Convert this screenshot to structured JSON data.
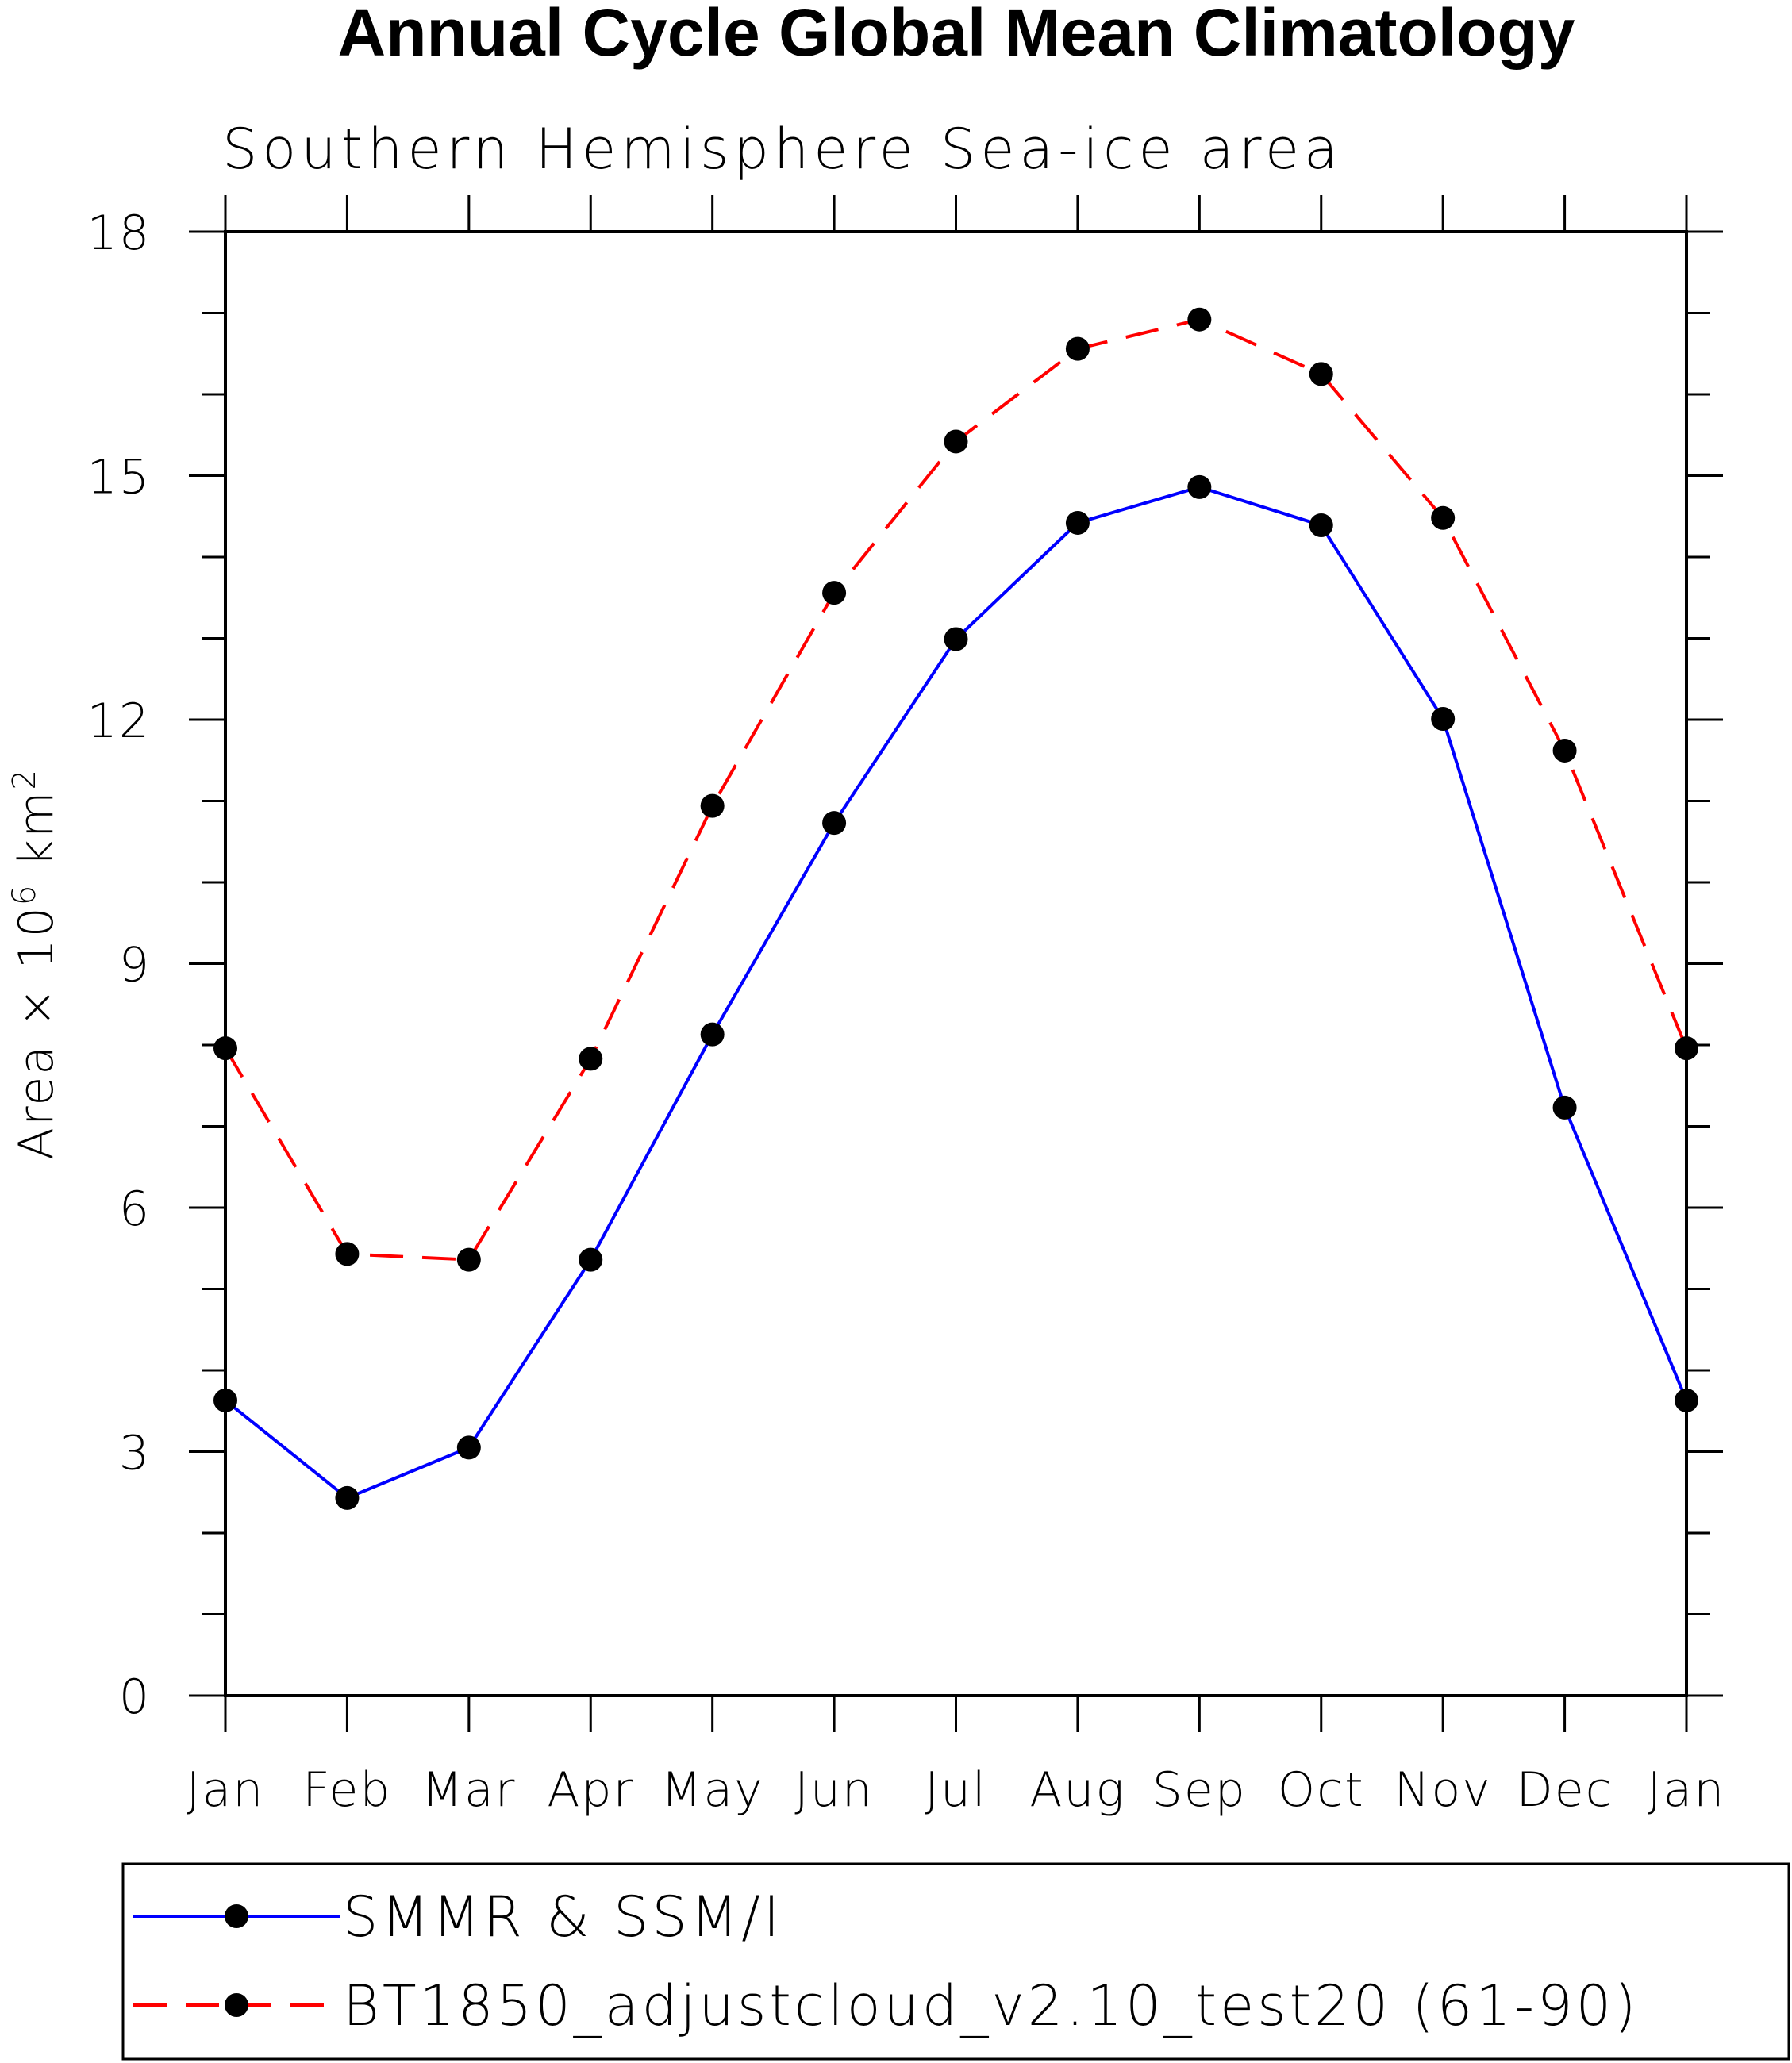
{
  "chart_data": {
    "type": "line",
    "title": "Annual Cycle Global Mean Climatology",
    "subtitle": "Southern Hemisphere Sea-ice area",
    "xlabel": "",
    "ylabel": "Area × 10",
    "ylabel_sup": "6",
    "ylabel_unit": " km",
    "ylabel_unit_sup": "2",
    "categories": [
      "Jan",
      "Feb",
      "Mar",
      "Apr",
      "May",
      "Jun",
      "Jul",
      "Aug",
      "Sep",
      "Oct",
      "Nov",
      "Dec",
      "Jan"
    ],
    "ylim": [
      0,
      18
    ],
    "yticks": [
      "0",
      "3",
      "6",
      "9",
      "12",
      "15",
      "18"
    ],
    "grid": false,
    "legend_position": "bottom",
    "series": [
      {
        "name": "SMMR & SSM/I",
        "color": "#0000ff",
        "dash": "solid",
        "values": [
          3.63,
          2.43,
          3.05,
          5.36,
          8.13,
          10.73,
          12.99,
          14.42,
          14.86,
          14.39,
          12.01,
          7.23,
          3.63
        ]
      },
      {
        "name": "BT1850_adjustcloud_v2.10_test20 (61-90)",
        "color": "#ff0000",
        "dash": "dashed",
        "values": [
          7.96,
          5.43,
          5.36,
          7.83,
          10.94,
          13.56,
          15.42,
          16.56,
          16.92,
          16.25,
          14.48,
          11.62,
          7.96
        ]
      }
    ]
  }
}
